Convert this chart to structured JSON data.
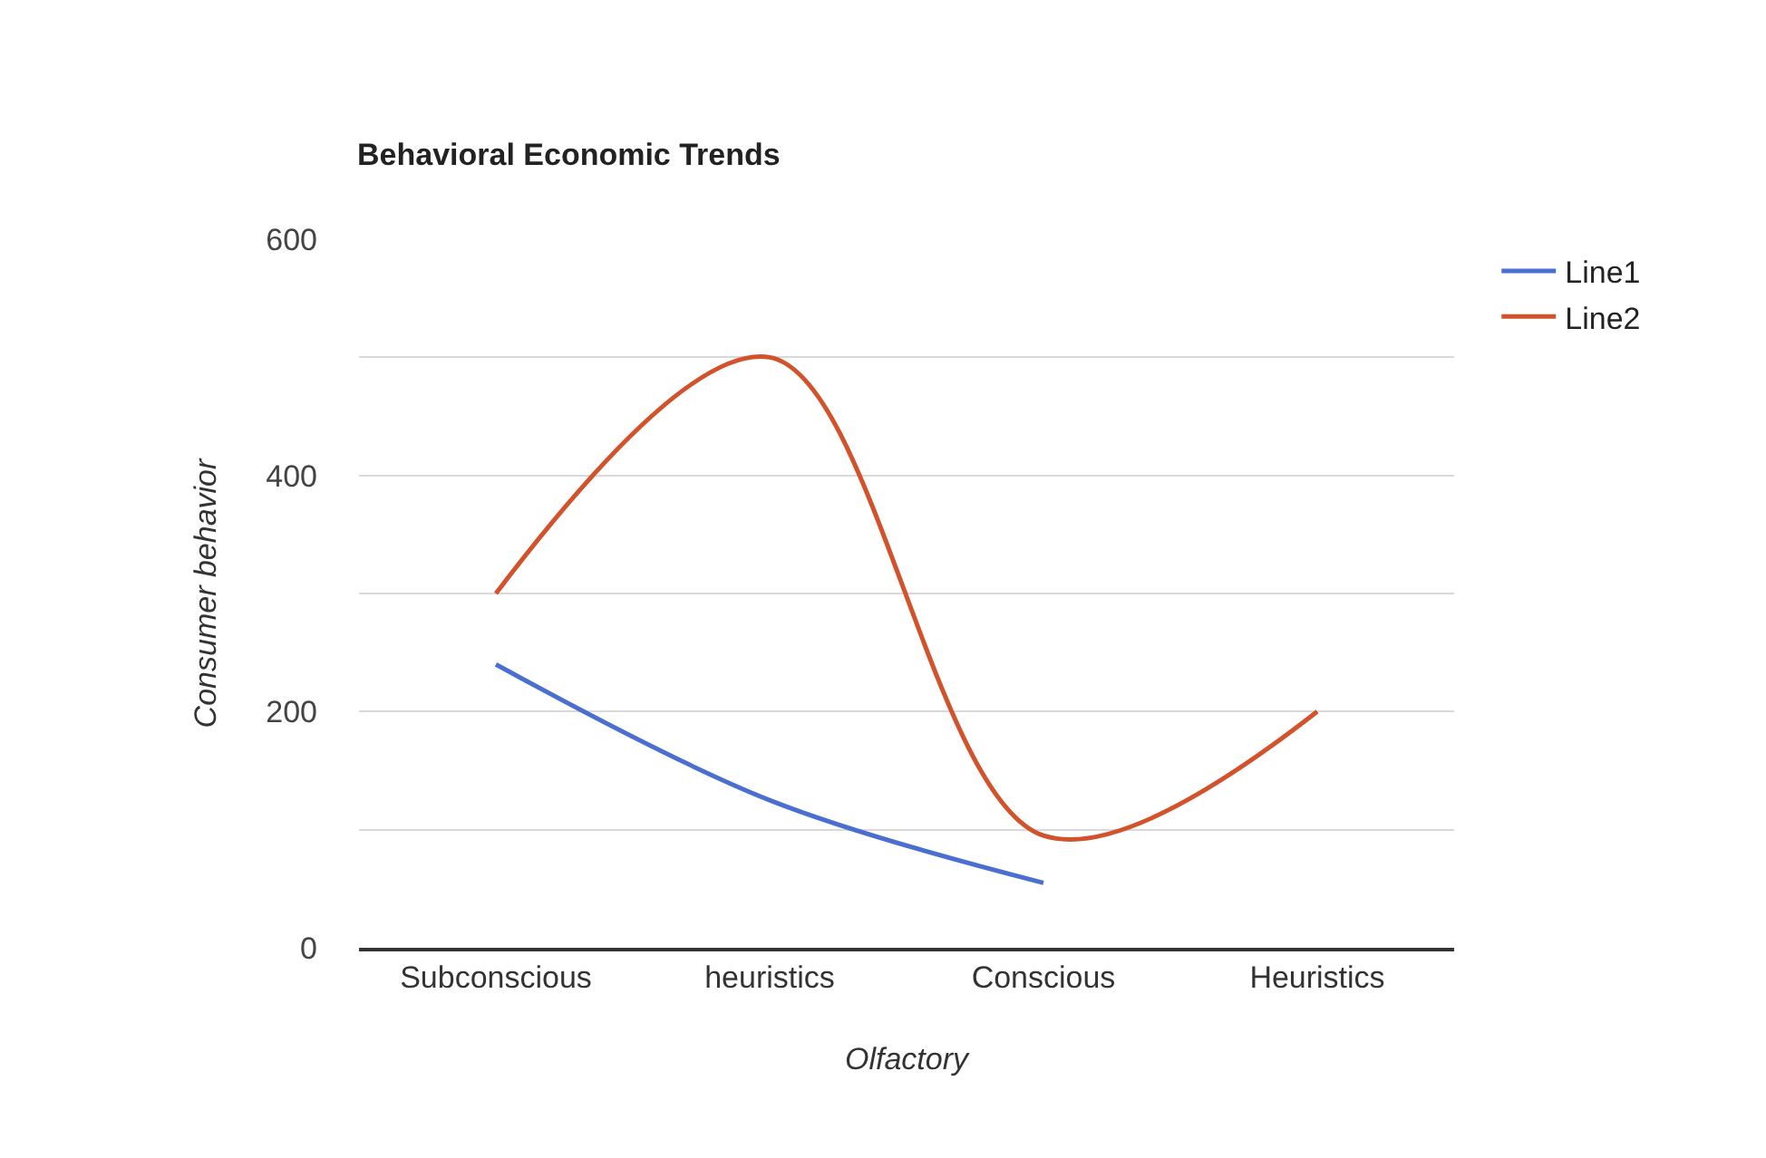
{
  "chart_data": {
    "type": "line",
    "title": "Behavioral Economic Trends",
    "xlabel": "Olfactory",
    "ylabel": "Consumer behavior",
    "categories": [
      "Subconscious",
      "heuristics",
      "Conscious",
      "Heuristics"
    ],
    "series": [
      {
        "name": "Line1",
        "color": "#4a6fd0",
        "values": [
          240,
          125,
          55,
          null
        ]
      },
      {
        "name": "Line2",
        "color": "#d2522c",
        "values": [
          300,
          500,
          95,
          200
        ]
      }
    ],
    "ylim": [
      0,
      600
    ],
    "yticks": [
      0,
      {
        "value": 100,
        "label": null
      },
      200,
      {
        "value": 300,
        "label": null
      },
      400,
      {
        "value": 500,
        "label": null
      },
      600
    ],
    "grid": "y",
    "legend": "top right",
    "marker": "none",
    "line_style": "solid"
  }
}
